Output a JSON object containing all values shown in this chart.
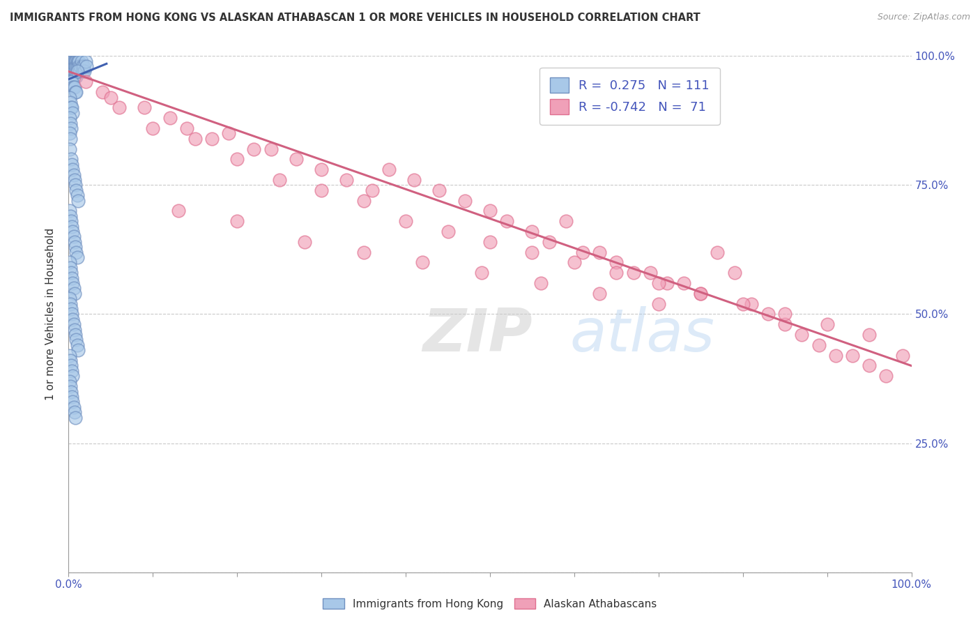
{
  "title": "IMMIGRANTS FROM HONG KONG VS ALASKAN ATHABASCAN 1 OR MORE VEHICLES IN HOUSEHOLD CORRELATION CHART",
  "source": "Source: ZipAtlas.com",
  "ylabel": "1 or more Vehicles in Household",
  "watermark_zip": "ZIP",
  "watermark_atlas": "atlas",
  "legend_blue_r": "R =  0.275",
  "legend_blue_n": "N = 111",
  "legend_pink_r": "R = -0.742",
  "legend_pink_n": "N =  71",
  "blue_color": "#A8C8E8",
  "pink_color": "#F0A0B8",
  "blue_edge_color": "#7090C0",
  "pink_edge_color": "#E07090",
  "blue_line_color": "#4060B0",
  "pink_line_color": "#D06080",
  "background": "#FFFFFF",
  "grid_color": "#BBBBBB",
  "title_color": "#333333",
  "axis_label_color": "#4455BB",
  "blue_scatter_x": [
    0.001,
    0.002,
    0.002,
    0.003,
    0.003,
    0.003,
    0.004,
    0.004,
    0.004,
    0.005,
    0.005,
    0.005,
    0.005,
    0.006,
    0.006,
    0.006,
    0.007,
    0.007,
    0.007,
    0.008,
    0.008,
    0.008,
    0.009,
    0.009,
    0.009,
    0.01,
    0.01,
    0.011,
    0.011,
    0.012,
    0.012,
    0.013,
    0.014,
    0.015,
    0.016,
    0.017,
    0.018,
    0.019,
    0.02,
    0.021,
    0.001,
    0.002,
    0.003,
    0.004,
    0.005,
    0.006,
    0.007,
    0.008,
    0.009,
    0.01,
    0.001,
    0.002,
    0.003,
    0.004,
    0.005,
    0.001,
    0.002,
    0.003,
    0.001,
    0.002,
    0.001,
    0.003,
    0.004,
    0.005,
    0.006,
    0.007,
    0.008,
    0.009,
    0.01,
    0.011,
    0.001,
    0.002,
    0.003,
    0.004,
    0.005,
    0.006,
    0.007,
    0.008,
    0.009,
    0.01,
    0.001,
    0.002,
    0.003,
    0.004,
    0.005,
    0.006,
    0.007,
    0.001,
    0.002,
    0.003,
    0.004,
    0.005,
    0.006,
    0.007,
    0.008,
    0.009,
    0.01,
    0.011,
    0.001,
    0.002,
    0.003,
    0.004,
    0.005,
    0.001,
    0.002,
    0.003,
    0.004,
    0.005,
    0.006,
    0.007,
    0.008
  ],
  "blue_scatter_y": [
    0.99,
    0.98,
    0.97,
    0.99,
    0.98,
    0.97,
    0.99,
    0.98,
    0.96,
    0.99,
    0.98,
    0.97,
    0.96,
    0.99,
    0.98,
    0.97,
    0.99,
    0.98,
    0.96,
    0.99,
    0.98,
    0.97,
    0.99,
    0.98,
    0.96,
    0.99,
    0.98,
    0.99,
    0.97,
    0.99,
    0.98,
    0.97,
    0.98,
    0.99,
    0.98,
    0.97,
    0.98,
    0.97,
    0.99,
    0.98,
    0.95,
    0.95,
    0.95,
    0.95,
    0.94,
    0.94,
    0.94,
    0.93,
    0.93,
    0.97,
    0.92,
    0.91,
    0.9,
    0.9,
    0.89,
    0.88,
    0.87,
    0.86,
    0.85,
    0.84,
    0.82,
    0.8,
    0.79,
    0.78,
    0.77,
    0.76,
    0.75,
    0.74,
    0.73,
    0.72,
    0.7,
    0.69,
    0.68,
    0.67,
    0.66,
    0.65,
    0.64,
    0.63,
    0.62,
    0.61,
    0.6,
    0.59,
    0.58,
    0.57,
    0.56,
    0.55,
    0.54,
    0.53,
    0.52,
    0.51,
    0.5,
    0.49,
    0.48,
    0.47,
    0.46,
    0.45,
    0.44,
    0.43,
    0.42,
    0.41,
    0.4,
    0.39,
    0.38,
    0.37,
    0.36,
    0.35,
    0.34,
    0.33,
    0.32,
    0.31,
    0.3
  ],
  "pink_scatter_x": [
    0.02,
    0.04,
    0.06,
    0.09,
    0.12,
    0.14,
    0.17,
    0.19,
    0.22,
    0.24,
    0.27,
    0.3,
    0.33,
    0.36,
    0.38,
    0.41,
    0.44,
    0.47,
    0.5,
    0.52,
    0.55,
    0.57,
    0.59,
    0.61,
    0.63,
    0.65,
    0.67,
    0.69,
    0.71,
    0.73,
    0.75,
    0.77,
    0.79,
    0.81,
    0.83,
    0.85,
    0.87,
    0.89,
    0.91,
    0.93,
    0.95,
    0.97,
    0.99,
    0.05,
    0.1,
    0.15,
    0.2,
    0.25,
    0.3,
    0.35,
    0.4,
    0.45,
    0.5,
    0.55,
    0.6,
    0.65,
    0.7,
    0.75,
    0.8,
    0.85,
    0.9,
    0.95,
    0.13,
    0.2,
    0.28,
    0.35,
    0.42,
    0.49,
    0.56,
    0.63,
    0.7
  ],
  "pink_scatter_y": [
    0.95,
    0.93,
    0.9,
    0.9,
    0.88,
    0.86,
    0.84,
    0.85,
    0.82,
    0.82,
    0.8,
    0.78,
    0.76,
    0.74,
    0.78,
    0.76,
    0.74,
    0.72,
    0.7,
    0.68,
    0.66,
    0.64,
    0.68,
    0.62,
    0.62,
    0.6,
    0.58,
    0.58,
    0.56,
    0.56,
    0.54,
    0.62,
    0.58,
    0.52,
    0.5,
    0.48,
    0.46,
    0.44,
    0.42,
    0.42,
    0.4,
    0.38,
    0.42,
    0.92,
    0.86,
    0.84,
    0.8,
    0.76,
    0.74,
    0.72,
    0.68,
    0.66,
    0.64,
    0.62,
    0.6,
    0.58,
    0.56,
    0.54,
    0.52,
    0.5,
    0.48,
    0.46,
    0.7,
    0.68,
    0.64,
    0.62,
    0.6,
    0.58,
    0.56,
    0.54,
    0.52
  ],
  "blue_trend_x": [
    0.0,
    0.045
  ],
  "blue_trend_y": [
    0.955,
    0.985
  ],
  "pink_trend_x": [
    0.0,
    1.0
  ],
  "pink_trend_y": [
    0.97,
    0.4
  ],
  "xlim": [
    0.0,
    1.0
  ],
  "ylim": [
    0.0,
    1.0
  ],
  "xticks": [
    0.0,
    0.1,
    0.2,
    0.3,
    0.4,
    0.5,
    0.6,
    0.7,
    0.8,
    0.9,
    1.0
  ],
  "yticks": [
    0.0,
    0.25,
    0.5,
    0.75,
    1.0
  ],
  "xtick_labels": [
    "0.0%",
    "",
    "",
    "",
    "",
    "",
    "",
    "",
    "",
    "",
    "100.0%"
  ],
  "ytick_labels_right": [
    "",
    "25.0%",
    "50.0%",
    "75.0%",
    "100.0%"
  ],
  "figsize": [
    14.06,
    8.92
  ],
  "dpi": 100
}
